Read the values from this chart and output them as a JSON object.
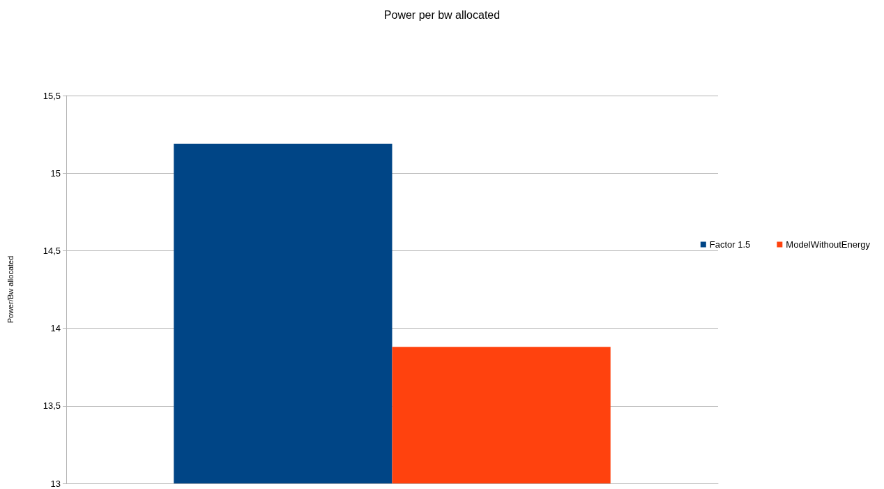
{
  "chart_data": {
    "type": "bar",
    "title": "Power per bw allocated",
    "ylabel": "Power/Bw allocated",
    "categories": [
      null
    ],
    "series": [
      {
        "name": "Factor 1.5",
        "color": "#004586",
        "values": [
          15.19
        ]
      },
      {
        "name": "ModelWithoutEnergy",
        "color": "#ff420e",
        "values": [
          13.88
        ]
      }
    ],
    "ylim": [
      13,
      15.5
    ],
    "yticks": [
      13,
      {
        "value": 13.5,
        "label": "13,5"
      },
      14,
      {
        "value": 14.5,
        "label": "14,5"
      },
      15,
      {
        "value": 15.5,
        "label": "15,5"
      }
    ],
    "grid": "y",
    "legend": "right"
  }
}
